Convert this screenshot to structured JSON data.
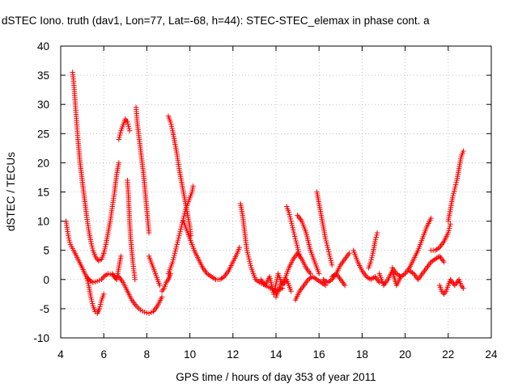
{
  "chart_data": {
    "type": "scatter",
    "title": "dSTEC Iono. truth (dav1, Lon=77, Lat=-68, h=44): STEC-STEC_elemax in phase cont. a",
    "xlabel": "GPS time / hours of day 353 of year 2011",
    "ylabel": "dSTEC  / TECUs",
    "xlim": [
      4,
      24
    ],
    "ylim": [
      -10,
      40
    ],
    "xticks": [
      4,
      6,
      8,
      10,
      12,
      14,
      16,
      18,
      20,
      22,
      24
    ],
    "yticks": [
      -10,
      -5,
      0,
      5,
      10,
      15,
      20,
      25,
      30,
      35,
      40
    ],
    "grid": true,
    "legend": "none",
    "marker": "plus",
    "colors": {
      "series": "#ff0000"
    },
    "segments": [
      {
        "x": [
          4.25,
          4.35,
          4.45,
          4.6,
          4.8,
          5.0,
          5.15,
          5.3
        ],
        "y": [
          10,
          7.5,
          6,
          5,
          3.5,
          2,
          0.8,
          0
        ]
      },
      {
        "x": [
          4.55,
          4.6,
          4.7,
          4.8,
          4.9,
          5.0,
          5.1,
          5.2,
          5.3,
          5.4,
          5.5,
          5.6,
          5.75,
          5.9,
          6.0
        ],
        "y": [
          35.5,
          34,
          29,
          24,
          20,
          17,
          14,
          11,
          8.5,
          6.5,
          5,
          4,
          3.2,
          3.5,
          4.5
        ]
      },
      {
        "x": [
          5.2,
          5.3,
          5.4,
          5.5,
          5.6,
          5.7,
          5.8,
          5.9,
          6.0
        ],
        "y": [
          0.5,
          -1,
          -3,
          -4.5,
          -5.5,
          -5.8,
          -5,
          -3.5,
          -2.5
        ]
      },
      {
        "x": [
          5.3,
          5.5,
          5.7,
          5.9,
          6.0,
          6.2,
          6.4,
          6.6
        ],
        "y": [
          0,
          -0.5,
          -0.3,
          0,
          0.5,
          1,
          0.8,
          0
        ]
      },
      {
        "x": [
          6.0,
          6.1,
          6.2,
          6.3,
          6.4,
          6.5,
          6.6,
          6.7
        ],
        "y": [
          4.5,
          6,
          8,
          10,
          12.5,
          15,
          18,
          20
        ]
      },
      {
        "x": [
          6.4,
          6.5,
          6.6,
          6.7,
          6.8
        ],
        "y": [
          1,
          0.5,
          0,
          2,
          4
        ]
      },
      {
        "x": [
          6.7,
          6.8,
          6.9,
          7.0,
          7.1,
          7.2
        ],
        "y": [
          24,
          25.5,
          26.5,
          27.5,
          27,
          25.5
        ]
      },
      {
        "x": [
          6.7,
          6.9,
          7.1,
          7.3,
          7.5,
          7.7,
          7.9,
          8.1,
          8.3,
          8.5,
          8.7
        ],
        "y": [
          0.5,
          -0.5,
          -2,
          -3.5,
          -4.5,
          -5.2,
          -5.6,
          -5.8,
          -5.5,
          -4.5,
          -3
        ]
      },
      {
        "x": [
          7.1,
          7.15,
          7.2,
          7.25,
          7.3,
          7.35,
          7.4,
          7.45
        ],
        "y": [
          17,
          14,
          10,
          7,
          5,
          3,
          1.5,
          0
        ]
      },
      {
        "x": [
          7.5,
          7.55,
          7.65,
          7.75,
          7.85,
          7.95,
          8.05,
          8.1
        ],
        "y": [
          29.5,
          27,
          24,
          21,
          18,
          14,
          10,
          8
        ]
      },
      {
        "x": [
          8.1,
          8.2,
          8.3,
          8.4,
          8.5,
          8.6
        ],
        "y": [
          4,
          3,
          2,
          1,
          0,
          -1
        ]
      },
      {
        "x": [
          8.7,
          8.8,
          8.9,
          9.0,
          9.05,
          9.1
        ],
        "y": [
          -2,
          -1.5,
          -0.5,
          0,
          0.5,
          1
        ]
      },
      {
        "x": [
          9.0,
          9.1,
          9.2,
          9.3,
          9.4,
          9.5,
          9.6,
          9.7,
          9.8,
          9.9,
          10.0,
          10.05
        ],
        "y": [
          28,
          27,
          25.5,
          23.5,
          21.5,
          19,
          17,
          15,
          13,
          11,
          9,
          7.5
        ]
      },
      {
        "x": [
          9.0,
          9.1,
          9.2,
          9.3,
          9.4,
          9.5,
          9.6,
          9.7,
          9.8,
          9.9,
          10.0,
          10.1,
          10.15
        ],
        "y": [
          1,
          2,
          3,
          4.5,
          6,
          7.5,
          9,
          10.5,
          12,
          13,
          14,
          15,
          16
        ]
      },
      {
        "x": [
          9.7,
          9.8,
          9.9,
          10.0,
          10.2,
          10.4,
          10.6,
          10.8,
          11.0,
          11.2,
          11.4,
          11.6,
          11.8,
          12.0,
          12.2,
          12.3
        ],
        "y": [
          10,
          9,
          8,
          7,
          5,
          3.5,
          2,
          1,
          0.5,
          0,
          0,
          0.5,
          1.5,
          3,
          4.5,
          5.5
        ]
      },
      {
        "x": [
          12.35,
          12.45,
          12.55,
          12.65,
          12.75,
          12.85,
          12.95,
          13.05,
          13.25,
          13.5,
          13.75,
          14.0,
          14.3
        ],
        "y": [
          13,
          11,
          8,
          5,
          3.5,
          2,
          1,
          0,
          -0.5,
          -1,
          -1.5,
          -2,
          -1.5
        ]
      },
      {
        "x": [
          13.3,
          13.5,
          13.7,
          13.9,
          14.1,
          14.3,
          14.5,
          14.7
        ],
        "y": [
          0,
          -1,
          0.5,
          -2.5,
          1,
          -1,
          0,
          -2
        ]
      },
      {
        "x": [
          14.0,
          14.2,
          14.4,
          14.6,
          14.8,
          15.0,
          15.2,
          15.4,
          15.6
        ],
        "y": [
          -3,
          -1,
          0,
          2,
          3.5,
          4.5,
          3.5,
          2,
          1
        ]
      },
      {
        "x": [
          14.5,
          14.6,
          14.7,
          14.8,
          14.9,
          15.0,
          15.1
        ],
        "y": [
          12.5,
          11.5,
          10,
          8.5,
          7,
          5.5,
          4
        ]
      },
      {
        "x": [
          15.0,
          15.2,
          15.4,
          15.6,
          15.8,
          16.0
        ],
        "y": [
          11,
          10,
          8,
          5,
          3,
          1
        ]
      },
      {
        "x": [
          14.9,
          15.1,
          15.3,
          15.5,
          15.7,
          15.9,
          16.1,
          16.3
        ],
        "y": [
          -3.5,
          -2,
          -1,
          0,
          0.5,
          0,
          -0.5,
          -1
        ]
      },
      {
        "x": [
          15.9,
          16.0,
          16.1,
          16.2,
          16.3,
          16.4,
          16.5,
          16.6
        ],
        "y": [
          15,
          13,
          11,
          9,
          7,
          5.5,
          4,
          2.5
        ]
      },
      {
        "x": [
          16.2,
          16.4,
          16.6,
          16.8,
          17.0,
          17.2,
          17.4
        ],
        "y": [
          0,
          -0.5,
          0,
          1,
          2.5,
          3.5,
          4.5
        ]
      },
      {
        "x": [
          16.6,
          16.8,
          17.0,
          17.2
        ],
        "y": [
          0.5,
          1,
          0,
          -1
        ]
      },
      {
        "x": [
          17.6,
          17.8,
          18.0,
          18.2,
          18.4,
          18.6,
          18.8
        ],
        "y": [
          5,
          3,
          1.5,
          0.5,
          0,
          0.5,
          -0.5
        ]
      },
      {
        "x": [
          18.3,
          18.4,
          18.5,
          18.6,
          18.7
        ],
        "y": [
          2,
          3,
          4.5,
          6.5,
          8
        ]
      },
      {
        "x": [
          18.8,
          19.0,
          19.2,
          19.4,
          19.6,
          19.8
        ],
        "y": [
          1,
          -1,
          0,
          1.5,
          -1,
          0.5
        ]
      },
      {
        "x": [
          19.4,
          19.6,
          19.8,
          20.0,
          20.2,
          20.4,
          20.6,
          20.8,
          21.0,
          21.2
        ],
        "y": [
          2,
          1,
          0.5,
          1,
          2,
          3.5,
          5,
          7,
          9,
          10.5
        ]
      },
      {
        "x": [
          20.2,
          20.4,
          20.6,
          20.8,
          21.0,
          21.2,
          21.4,
          21.6,
          21.8
        ],
        "y": [
          1.5,
          1,
          0,
          1,
          2,
          3,
          3.5,
          4,
          3
        ]
      },
      {
        "x": [
          21.2,
          21.4,
          21.6,
          21.8,
          22.0,
          22.1
        ],
        "y": [
          5,
          5,
          5.5,
          6.5,
          8,
          9.5
        ]
      },
      {
        "x": [
          21.6,
          21.7,
          21.8,
          21.9,
          22.0,
          22.1,
          22.2,
          22.3,
          22.4,
          22.5,
          22.6,
          22.7
        ],
        "y": [
          -1,
          -2,
          -2.5,
          -2,
          -1,
          0,
          -0.5,
          -1,
          -0.5,
          0,
          -1,
          -1.5
        ]
      },
      {
        "x": [
          22.0,
          22.1,
          22.2,
          22.3,
          22.4,
          22.5,
          22.6,
          22.7
        ],
        "y": [
          10,
          12,
          14,
          15.5,
          17,
          19,
          21,
          22
        ]
      }
    ]
  }
}
